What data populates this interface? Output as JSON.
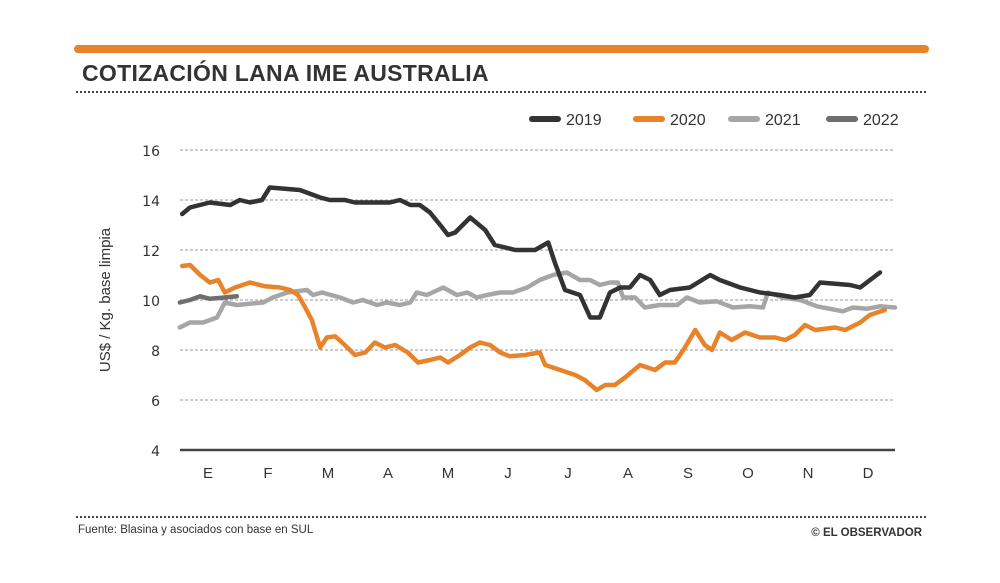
{
  "header": {
    "title": "COTIZACIÓN LANA IME AUSTRALIA",
    "accent_color": "#e8832a"
  },
  "footer": {
    "source": "Fuente: Blasina y asociados con base en SUL",
    "credit": "© EL OBSERVADOR"
  },
  "chart_data": {
    "type": "line",
    "title": "COTIZACIÓN LANA IME AUSTRALIA",
    "ylabel": "US$ / Kg. base limpia",
    "xlabel": "",
    "ylim": [
      4,
      16
    ],
    "yticks": [
      4,
      6,
      8,
      10,
      12,
      14,
      16
    ],
    "xlim": [
      1,
      13
    ],
    "x_unit": "month (1 = start of January)",
    "xtick_labels": [
      "E",
      "F",
      "M",
      "A",
      "M",
      "J",
      "J",
      "A",
      "S",
      "O",
      "N",
      "D"
    ],
    "grid": "horizontal dashed",
    "legend_position": "top-right",
    "series": [
      {
        "name": "2019",
        "color": "#333333",
        "points": [
          [
            1.07,
            13.44
          ],
          [
            1.2,
            13.7
          ],
          [
            1.53,
            13.9
          ],
          [
            1.87,
            13.8
          ],
          [
            2.03,
            14.0
          ],
          [
            2.2,
            13.9
          ],
          [
            2.4,
            14.0
          ],
          [
            2.53,
            14.5
          ],
          [
            3.03,
            14.4
          ],
          [
            3.37,
            14.1
          ],
          [
            3.53,
            14.0
          ],
          [
            3.78,
            14.0
          ],
          [
            3.95,
            13.9
          ],
          [
            4.53,
            13.9
          ],
          [
            4.7,
            14.0
          ],
          [
            4.87,
            13.8
          ],
          [
            5.03,
            13.8
          ],
          [
            5.2,
            13.5
          ],
          [
            5.37,
            13.0
          ],
          [
            5.5,
            12.6
          ],
          [
            5.62,
            12.7
          ],
          [
            5.87,
            13.3
          ],
          [
            6.12,
            12.8
          ],
          [
            6.28,
            12.2
          ],
          [
            6.62,
            12.0
          ],
          [
            6.95,
            12.0
          ],
          [
            7.17,
            12.3
          ],
          [
            7.28,
            11.5
          ],
          [
            7.45,
            10.4
          ],
          [
            7.7,
            10.2
          ],
          [
            7.87,
            9.3
          ],
          [
            8.03,
            9.3
          ],
          [
            8.2,
            10.3
          ],
          [
            8.37,
            10.5
          ],
          [
            8.53,
            10.5
          ],
          [
            8.7,
            11.0
          ],
          [
            8.87,
            10.8
          ],
          [
            9.03,
            10.2
          ],
          [
            9.2,
            10.4
          ],
          [
            9.53,
            10.5
          ],
          [
            9.87,
            11.0
          ],
          [
            10.03,
            10.8
          ],
          [
            10.37,
            10.5
          ],
          [
            10.7,
            10.3
          ],
          [
            11.03,
            10.2
          ],
          [
            11.28,
            10.1
          ],
          [
            11.53,
            10.2
          ],
          [
            11.7,
            10.7
          ],
          [
            12.2,
            10.6
          ],
          [
            12.37,
            10.5
          ],
          [
            12.7,
            11.1
          ]
        ]
      },
      {
        "name": "2020",
        "color": "#e8832a",
        "points": [
          [
            1.07,
            11.36
          ],
          [
            1.2,
            11.4
          ],
          [
            1.37,
            11.0
          ],
          [
            1.53,
            10.7
          ],
          [
            1.67,
            10.8
          ],
          [
            1.78,
            10.3
          ],
          [
            1.95,
            10.5
          ],
          [
            2.2,
            10.7
          ],
          [
            2.45,
            10.55
          ],
          [
            2.7,
            10.5
          ],
          [
            2.87,
            10.4
          ],
          [
            3.0,
            10.2
          ],
          [
            3.12,
            9.7
          ],
          [
            3.23,
            9.2
          ],
          [
            3.37,
            8.1
          ],
          [
            3.48,
            8.5
          ],
          [
            3.62,
            8.55
          ],
          [
            3.78,
            8.2
          ],
          [
            3.95,
            7.8
          ],
          [
            4.12,
            7.9
          ],
          [
            4.28,
            8.3
          ],
          [
            4.45,
            8.1
          ],
          [
            4.62,
            8.2
          ],
          [
            4.83,
            7.9
          ],
          [
            5.0,
            7.5
          ],
          [
            5.2,
            7.6
          ],
          [
            5.37,
            7.7
          ],
          [
            5.5,
            7.5
          ],
          [
            5.7,
            7.8
          ],
          [
            5.87,
            8.1
          ],
          [
            6.03,
            8.3
          ],
          [
            6.2,
            8.2
          ],
          [
            6.37,
            7.9
          ],
          [
            6.53,
            7.75
          ],
          [
            6.78,
            7.8
          ],
          [
            7.03,
            7.9
          ],
          [
            7.12,
            7.4
          ],
          [
            7.37,
            7.2
          ],
          [
            7.62,
            7.0
          ],
          [
            7.78,
            6.8
          ],
          [
            7.98,
            6.4
          ],
          [
            8.12,
            6.6
          ],
          [
            8.28,
            6.6
          ],
          [
            8.45,
            6.9
          ],
          [
            8.7,
            7.4
          ],
          [
            8.95,
            7.2
          ],
          [
            9.12,
            7.5
          ],
          [
            9.28,
            7.5
          ],
          [
            9.45,
            8.1
          ],
          [
            9.62,
            8.8
          ],
          [
            9.78,
            8.2
          ],
          [
            9.9,
            8.0
          ],
          [
            10.03,
            8.7
          ],
          [
            10.23,
            8.4
          ],
          [
            10.45,
            8.7
          ],
          [
            10.7,
            8.5
          ],
          [
            10.95,
            8.5
          ],
          [
            11.12,
            8.4
          ],
          [
            11.28,
            8.6
          ],
          [
            11.45,
            9.0
          ],
          [
            11.62,
            8.8
          ],
          [
            11.95,
            8.9
          ],
          [
            12.12,
            8.8
          ],
          [
            12.37,
            9.1
          ],
          [
            12.53,
            9.4
          ],
          [
            12.78,
            9.6
          ]
        ]
      },
      {
        "name": "2021",
        "color": "#a6a6a6",
        "points": [
          [
            1.03,
            8.9
          ],
          [
            1.2,
            9.1
          ],
          [
            1.42,
            9.1
          ],
          [
            1.65,
            9.3
          ],
          [
            1.78,
            9.9
          ],
          [
            1.98,
            9.8
          ],
          [
            2.42,
            9.9
          ],
          [
            2.58,
            10.1
          ],
          [
            2.82,
            10.3
          ],
          [
            3.15,
            10.4
          ],
          [
            3.25,
            10.2
          ],
          [
            3.4,
            10.3
          ],
          [
            3.7,
            10.1
          ],
          [
            3.92,
            9.9
          ],
          [
            4.08,
            10.0
          ],
          [
            4.32,
            9.8
          ],
          [
            4.48,
            9.9
          ],
          [
            4.7,
            9.8
          ],
          [
            4.87,
            9.9
          ],
          [
            4.98,
            10.3
          ],
          [
            5.15,
            10.2
          ],
          [
            5.42,
            10.5
          ],
          [
            5.65,
            10.2
          ],
          [
            5.82,
            10.3
          ],
          [
            5.98,
            10.1
          ],
          [
            6.15,
            10.2
          ],
          [
            6.37,
            10.3
          ],
          [
            6.58,
            10.3
          ],
          [
            6.82,
            10.5
          ],
          [
            7.03,
            10.8
          ],
          [
            7.25,
            11.0
          ],
          [
            7.48,
            11.1
          ],
          [
            7.7,
            10.8
          ],
          [
            7.87,
            10.8
          ],
          [
            8.03,
            10.6
          ],
          [
            8.2,
            10.7
          ],
          [
            8.33,
            10.7
          ],
          [
            8.42,
            10.1
          ],
          [
            8.62,
            10.1
          ],
          [
            8.78,
            9.7
          ],
          [
            9.03,
            9.8
          ],
          [
            9.32,
            9.8
          ],
          [
            9.48,
            10.1
          ],
          [
            9.7,
            9.9
          ],
          [
            9.98,
            9.95
          ],
          [
            10.25,
            9.7
          ],
          [
            10.53,
            9.75
          ],
          [
            10.75,
            9.7
          ],
          [
            10.83,
            10.3
          ],
          [
            11.08,
            10.1
          ],
          [
            11.37,
            10.0
          ],
          [
            11.65,
            9.75
          ],
          [
            12.08,
            9.55
          ],
          [
            12.25,
            9.7
          ],
          [
            12.48,
            9.65
          ],
          [
            12.7,
            9.75
          ],
          [
            12.95,
            9.7
          ]
        ]
      },
      {
        "name": "2022",
        "color": "#6e6e6e",
        "points": [
          [
            1.03,
            9.9
          ],
          [
            1.2,
            10.0
          ],
          [
            1.37,
            10.15
          ],
          [
            1.53,
            10.05
          ],
          [
            1.78,
            10.1
          ],
          [
            1.98,
            10.15
          ]
        ]
      }
    ]
  }
}
